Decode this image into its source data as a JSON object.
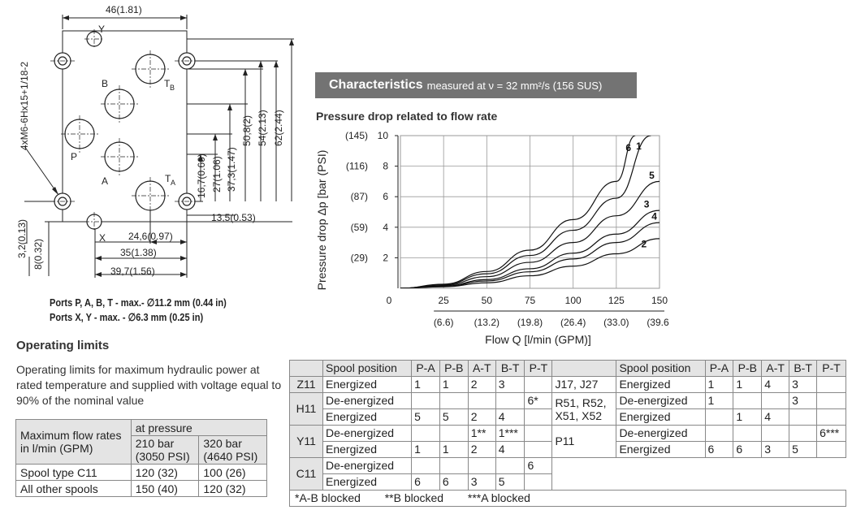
{
  "drawing": {
    "dim_top": "46(1.81)",
    "dim_left_thread": "4xM6-6Hx15+1/18-2",
    "dim_v1": "16,7(0.66)",
    "dim_v2": "27(1.06)",
    "dim_v3": "37,3(1.47)",
    "dim_v4": "50,8(2)",
    "dim_v5": "54(2.13)",
    "dim_v6": "62(2.44)",
    "dim_h1": "13,5(0.53)",
    "dim_h2": "24,6(0.97)",
    "dim_h3": "35(1.38)",
    "dim_h4": "39,7(1.56)",
    "dim_left1": "3,2(0.13)",
    "dim_left2": "8(0.32)",
    "port_y": "Y",
    "port_b": "B",
    "port_tb": "T",
    "port_tb_sub": "B",
    "port_p": "P",
    "port_a": "A",
    "port_ta": "T",
    "port_ta_sub": "A",
    "port_x": "X",
    "ports_note_1": "Ports P, A, B, T - max.- ∅11.2 mm (0.44 in)",
    "ports_note_2": "Ports X, Y - max. - ∅6.3 mm (0.25 in)"
  },
  "characteristics": {
    "banner_title": "Characteristics",
    "banner_sub": "measured at ν = 32 mm²/s (156 SUS)"
  },
  "chart_data": {
    "type": "line",
    "title": "Pressure drop related to flow rate",
    "xlabel": "Flow Q [l/min (GPM)]",
    "ylabel": "Pressure drop Δp [bar (PSI)",
    "xlim": [
      0,
      150
    ],
    "ylim": [
      0,
      10
    ],
    "x_ticks": [
      0,
      25,
      50,
      75,
      100,
      125,
      150
    ],
    "x_ticks_gpm": [
      "",
      "(6.6)",
      "(13.2)",
      "(19.8)",
      "(26.4)",
      "(33.0)",
      "(39.6)"
    ],
    "y_ticks": [
      2,
      4,
      6,
      8,
      10
    ],
    "y_ticks_psi": [
      "(29)",
      "(59)",
      "(87)",
      "(116)",
      "(145)"
    ],
    "grid": true,
    "series": [
      {
        "name": "6",
        "x": [
          0,
          25,
          50,
          75,
          100,
          125,
          136
        ],
        "y": [
          0,
          0.27,
          1.1,
          2.5,
          4.5,
          7.0,
          10
        ]
      },
      {
        "name": "1",
        "x": [
          0,
          25,
          50,
          75,
          100,
          125,
          145
        ],
        "y": [
          0,
          0.24,
          0.95,
          2.15,
          3.8,
          5.9,
          10
        ]
      },
      {
        "name": "5",
        "x": [
          0,
          25,
          50,
          75,
          100,
          125,
          150
        ],
        "y": [
          0,
          0.19,
          0.76,
          1.7,
          3.0,
          4.75,
          7.0
        ]
      },
      {
        "name": "3",
        "x": [
          0,
          25,
          50,
          75,
          100,
          125,
          150
        ],
        "y": [
          0,
          0.14,
          0.57,
          1.28,
          2.3,
          3.55,
          5.1
        ]
      },
      {
        "name": "4",
        "x": [
          0,
          25,
          50,
          75,
          100,
          125,
          150
        ],
        "y": [
          0,
          0.12,
          0.48,
          1.08,
          1.92,
          3.0,
          4.3
        ]
      },
      {
        "name": "2",
        "x": [
          0,
          25,
          50,
          75,
          100,
          125,
          150
        ],
        "y": [
          0,
          0.1,
          0.36,
          0.82,
          1.45,
          2.26,
          3.25
        ]
      }
    ]
  },
  "operating": {
    "title": "Operating limits",
    "description": "Operating limits for maximum hydraulic power at rated temperature and supplied with voltage equal to 90% of the nominal value",
    "table": {
      "row_header": "Maximum flow rates in l/min (GPM)",
      "group_header": "at pressure",
      "col1": "210 bar (3050 PSI)",
      "col2": "320 bar (4640 PSI)",
      "rows": [
        {
          "label": "Spool type C11",
          "v1": "120 (32)",
          "v2": "100 (26)"
        },
        {
          "label": "All other spools",
          "v1": "150 (40)",
          "v2": "120 (32)"
        }
      ]
    }
  },
  "spool_table": {
    "headers": [
      "Spool position",
      "P-A",
      "P-B",
      "A-T",
      "B-T",
      "P-T"
    ],
    "left": [
      {
        "spool": "Z11",
        "pos": "Energized",
        "pa": "1",
        "pb": "1",
        "at": "2",
        "bt": "3",
        "pt": ""
      },
      {
        "spool": "H11",
        "pos": "De-energized",
        "pa": "",
        "pb": "",
        "at": "",
        "bt": "",
        "pt": "6*"
      },
      {
        "spool": "",
        "pos": "Energized",
        "pa": "5",
        "pb": "5",
        "at": "2",
        "bt": "4",
        "pt": ""
      },
      {
        "spool": "Y11",
        "pos": "De-energized",
        "pa": "",
        "pb": "",
        "at": "1**",
        "bt": "1***",
        "pt": ""
      },
      {
        "spool": "",
        "pos": "Energized",
        "pa": "1",
        "pb": "1",
        "at": "2",
        "bt": "4",
        "pt": ""
      },
      {
        "spool": "C11",
        "pos": "De-energized",
        "pa": "",
        "pb": "",
        "at": "",
        "bt": "",
        "pt": "6"
      },
      {
        "spool": "",
        "pos": "Energized",
        "pa": "6",
        "pb": "6",
        "at": "3",
        "bt": "5",
        "pt": ""
      }
    ],
    "right_spools": {
      "g1": "J17, J27",
      "g2": "R51, R52, X51, X52",
      "g3": "P11"
    },
    "right": [
      {
        "pos": "Energized",
        "pa": "1",
        "pb": "1",
        "at": "4",
        "bt": "3",
        "pt": ""
      },
      {
        "pos": "De-energized",
        "pa": "1",
        "pb": "",
        "at": "",
        "bt": "3",
        "pt": ""
      },
      {
        "pos": "Energized",
        "pa": "",
        "pb": "1",
        "at": "4",
        "bt": "",
        "pt": ""
      },
      {
        "pos": "De-energized",
        "pa": "",
        "pb": "",
        "at": "",
        "bt": "",
        "pt": "6***"
      },
      {
        "pos": "Energized",
        "pa": "6",
        "pb": "6",
        "at": "3",
        "bt": "5",
        "pt": ""
      }
    ],
    "footnote_1": "*A-B blocked",
    "footnote_2": "**B blocked",
    "footnote_3": "***A blocked"
  }
}
